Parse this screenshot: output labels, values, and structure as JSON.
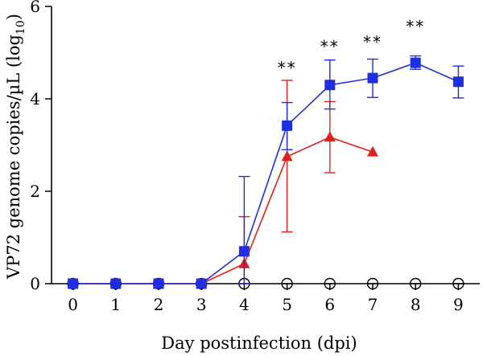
{
  "chart_data": {
    "type": "line",
    "xlabel": "Day postinfection (dpi)",
    "ylabel": "VP72 genome copies/µL (log",
    "ylabel_subscript": "10",
    "ylabel_close": ")",
    "xlim": [
      -0.5,
      9.5
    ],
    "ylim": [
      0,
      6
    ],
    "xticks": [
      0,
      1,
      2,
      3,
      4,
      5,
      6,
      7,
      8,
      9
    ],
    "yticks": [
      0,
      2,
      4,
      6
    ],
    "grid": false,
    "series": [
      {
        "marker": "square",
        "color": "#1f2fe0",
        "x": [
          0,
          1,
          2,
          3,
          4,
          5,
          6,
          7,
          8,
          9
        ],
        "y": [
          0,
          0,
          0,
          0,
          0.7,
          3.42,
          4.3,
          4.45,
          4.78,
          4.37
        ],
        "err_low": [
          0,
          0,
          0,
          0,
          0.7,
          0.52,
          0.52,
          0.42,
          0.14,
          0.35
        ],
        "err_high": [
          0,
          0,
          0,
          0,
          1.62,
          0.5,
          0.54,
          0.41,
          0.15,
          0.34
        ]
      },
      {
        "marker": "triangle",
        "color": "#e0201f",
        "x": [
          0,
          1,
          2,
          3,
          4,
          5,
          6,
          7
        ],
        "y": [
          0,
          0,
          0,
          0,
          0.43,
          2.75,
          3.17,
          2.85
        ],
        "err_low": [
          0,
          0,
          0,
          0,
          0.43,
          1.63,
          0.77,
          0
        ],
        "err_high": [
          0,
          0,
          0,
          0,
          1.02,
          1.65,
          0.77,
          0
        ]
      },
      {
        "marker": "open-circle",
        "color": "#000000",
        "x": [
          0,
          1,
          2,
          3,
          4,
          5,
          6,
          7,
          8,
          9
        ],
        "y": [
          0,
          0,
          0,
          0,
          0,
          0,
          0,
          0,
          0,
          0
        ]
      }
    ],
    "annotations": [
      {
        "text": "**",
        "x": 5,
        "y": 4.72
      },
      {
        "text": "**",
        "x": 6,
        "y": 5.18
      },
      {
        "text": "**",
        "x": 7,
        "y": 5.28
      },
      {
        "text": "**",
        "x": 8,
        "y": 5.62
      }
    ]
  }
}
